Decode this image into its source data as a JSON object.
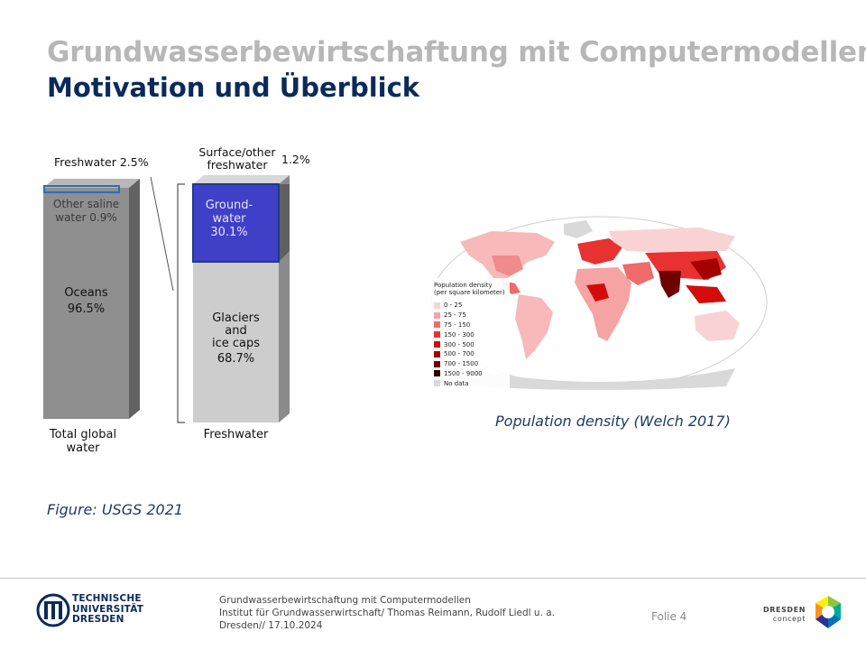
{
  "header": {
    "title": "Grundwasserbewirtschaftung mit Computermodellen",
    "subtitle": "Motivation und Überblick"
  },
  "water_figure": {
    "freshwater_share": "Freshwater 2.5%",
    "surface_other_line1": "Surface/other",
    "surface_other_line2": "freshwater",
    "surface_other_value": "1.2%",
    "other_saline_line1": "Other saline",
    "other_saline_line2": "water 0.9%",
    "oceans_label": "Oceans",
    "oceans_value": "96.5%",
    "groundwater_line1": "Ground-",
    "groundwater_line2": "water",
    "groundwater_value": "30.1%",
    "glaciers_line1": "Glaciers",
    "glaciers_line2": "and",
    "glaciers_line3": "ice caps",
    "glaciers_value": "68.7%",
    "total_line1": "Total global",
    "total_line2": "water",
    "freshwater_label": "Freshwater",
    "caption": "Figure: USGS 2021",
    "colors": {
      "bar_grey": "#8e8e8e",
      "bar_light": "#cfcfcf",
      "groundwater": "#3f3fc8",
      "outline_blue": "#2a6fb8"
    }
  },
  "population_map": {
    "legend_title_line1": "Population density",
    "legend_title_line2": "(per square kilometer)",
    "legend": [
      {
        "label": "0 - 25",
        "color": "#f9d3d3"
      },
      {
        "label": "25 - 75",
        "color": "#f5a3a3"
      },
      {
        "label": "75 - 150",
        "color": "#f06b6b"
      },
      {
        "label": "150 - 300",
        "color": "#e83232"
      },
      {
        "label": "300 - 500",
        "color": "#d40b0b"
      },
      {
        "label": "500 - 700",
        "color": "#a50000"
      },
      {
        "label": "700 - 1500",
        "color": "#6e0000"
      },
      {
        "label": "1500 - 9000",
        "color": "#2b0000"
      },
      {
        "label": "No data",
        "color": "#d9d9d9"
      }
    ],
    "caption": "Population density (Welch 2017)"
  },
  "footer": {
    "line1": "Grundwasserbewirtschaftung mit Computermodellen",
    "line2": "Institut für Grundwasserwirtschaft/ Thomas Reimann, Rudolf Liedl u. a.",
    "line3": "Dresden// 17.10.2024",
    "slide_number": "Folie 4",
    "tud_logo_line1": "TECHNISCHE",
    "tud_logo_line2": "UNIVERSITÄT",
    "tud_logo_line3": "DRESDEN",
    "dc_logo_line1": "DRESDEN",
    "dc_logo_line2": "concept"
  }
}
